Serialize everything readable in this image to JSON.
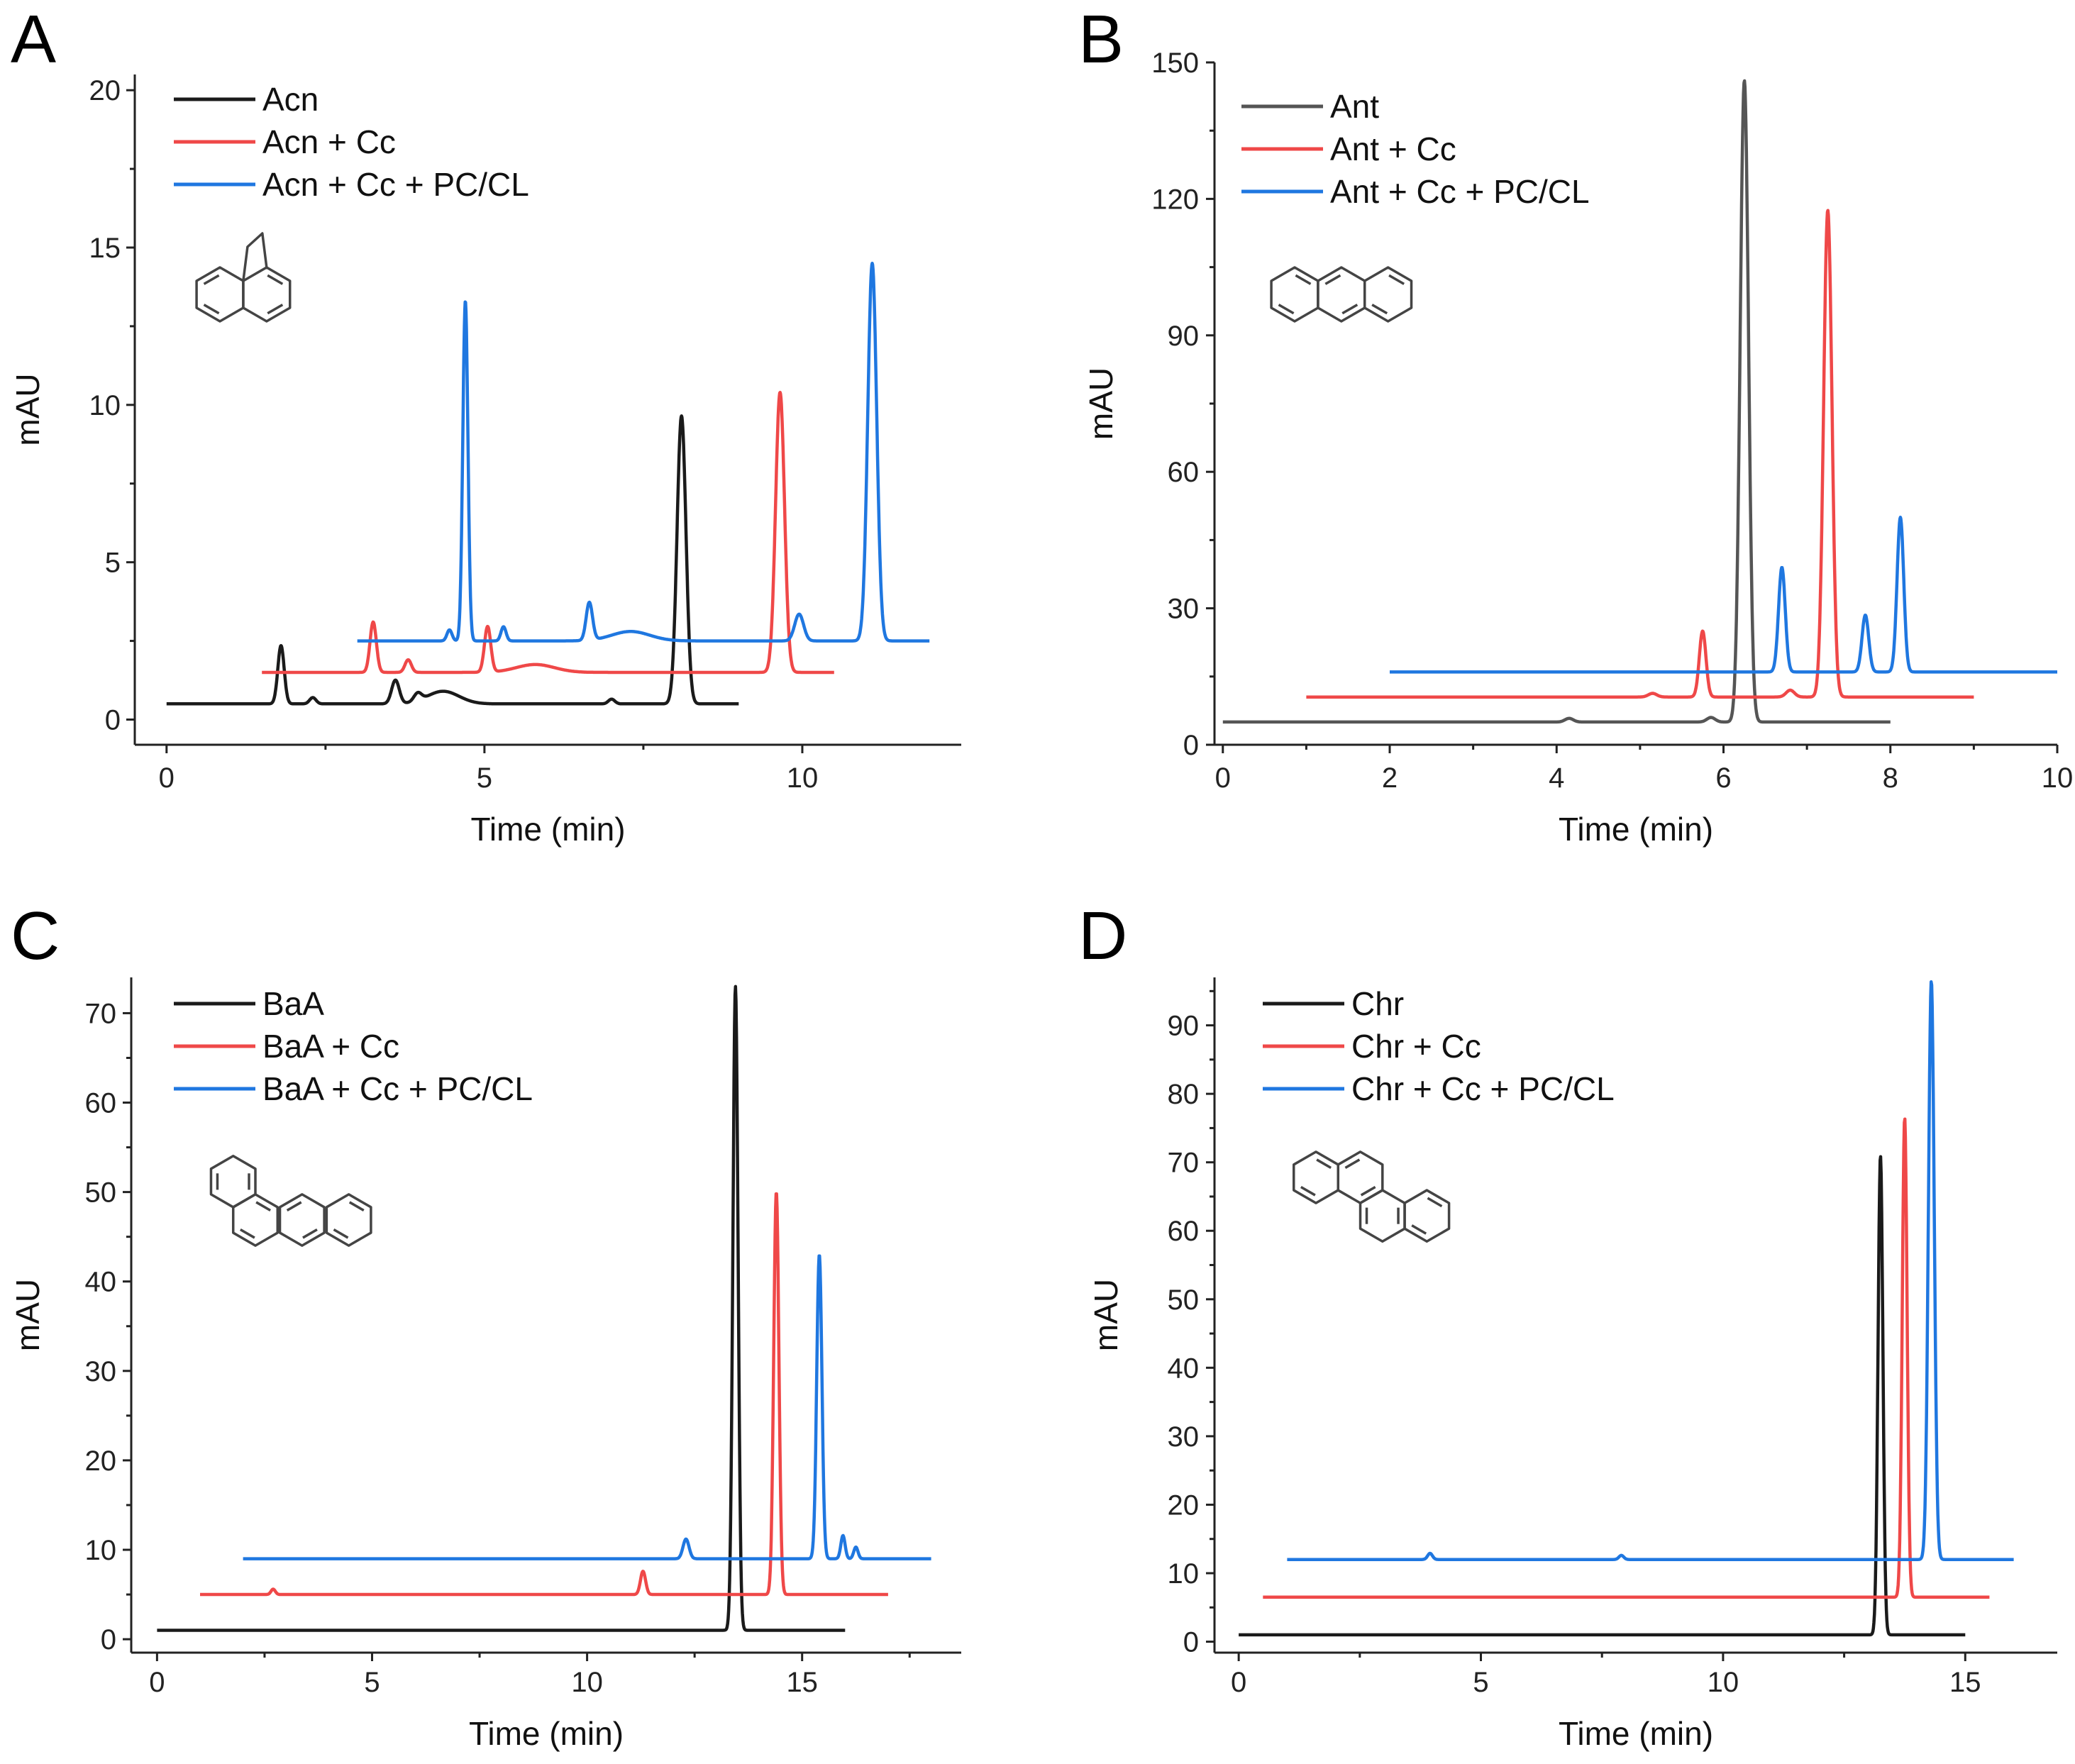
{
  "colors": {
    "black": "#1a1a1a",
    "red": "#ef4848",
    "blue": "#1f77e0",
    "gray": "#555555"
  },
  "chart_data": [
    {
      "type": "line",
      "panel": "A",
      "xlabel": "Time (min)",
      "ylabel": "mAU",
      "xlim": [
        -0.5,
        12.5
      ],
      "ylim": [
        -0.8,
        20.5
      ],
      "xticks": [
        0,
        5,
        10
      ],
      "yticks": [
        0,
        5,
        10,
        15,
        20
      ],
      "molecule": "acenaphthene",
      "series": [
        {
          "name": "Acn",
          "color": "black",
          "x_range": [
            0,
            9
          ],
          "baseline": 0.5,
          "peaks": [
            [
              1.8,
              1.85,
              0.05
            ],
            [
              2.3,
              0.2,
              0.05
            ],
            [
              3.6,
              0.75,
              0.06
            ],
            [
              3.95,
              0.25,
              0.06
            ],
            [
              4.35,
              0.4,
              0.25
            ],
            [
              7.0,
              0.15,
              0.05
            ],
            [
              8.1,
              9.15,
              0.07
            ]
          ]
        },
        {
          "name": "Acn + Cc",
          "color": "red",
          "x_range": [
            1.5,
            10.5
          ],
          "baseline": 1.5,
          "peaks": [
            [
              3.25,
              1.6,
              0.05
            ],
            [
              3.8,
              0.4,
              0.05
            ],
            [
              5.05,
              1.45,
              0.05
            ],
            [
              5.8,
              0.25,
              0.3
            ],
            [
              9.65,
              8.9,
              0.07
            ]
          ]
        },
        {
          "name": "Acn + Cc + PC/CL",
          "color": "blue",
          "x_range": [
            3,
            12
          ],
          "baseline": 2.5,
          "peaks": [
            [
              4.45,
              0.35,
              0.04
            ],
            [
              4.7,
              10.8,
              0.04
            ],
            [
              5.3,
              0.45,
              0.04
            ],
            [
              6.65,
              1.2,
              0.05
            ],
            [
              7.3,
              0.3,
              0.3
            ],
            [
              9.95,
              0.85,
              0.07
            ],
            [
              11.1,
              12.0,
              0.07
            ]
          ]
        }
      ]
    },
    {
      "type": "line",
      "panel": "B",
      "xlabel": "Time (min)",
      "ylabel": "mAU",
      "xlim": [
        -0.1,
        10.0
      ],
      "ylim": [
        0,
        150
      ],
      "xticks": [
        0,
        2,
        4,
        6,
        8,
        10
      ],
      "yticks": [
        0,
        30,
        60,
        90,
        120,
        150
      ],
      "molecule": "anthracene",
      "series": [
        {
          "name": "Ant",
          "color": "gray",
          "x_range": [
            0,
            8
          ],
          "baseline": 5,
          "peaks": [
            [
              4.15,
              0.8,
              0.05
            ],
            [
              5.85,
              1.0,
              0.05
            ],
            [
              6.25,
              141,
              0.05
            ]
          ]
        },
        {
          "name": "Ant + Cc",
          "color": "red",
          "x_range": [
            1,
            9
          ],
          "baseline": 10.5,
          "peaks": [
            [
              5.15,
              0.8,
              0.05
            ],
            [
              5.75,
              14.5,
              0.04
            ],
            [
              6.8,
              1.5,
              0.05
            ],
            [
              7.25,
              107,
              0.05
            ]
          ]
        },
        {
          "name": "Ant + Cc + PC/CL",
          "color": "blue",
          "x_range": [
            2,
            10
          ],
          "baseline": 16,
          "peaks": [
            [
              6.7,
              23,
              0.04
            ],
            [
              7.7,
              12.5,
              0.04
            ],
            [
              8.12,
              34,
              0.04
            ]
          ]
        }
      ]
    },
    {
      "type": "line",
      "panel": "C",
      "xlabel": "Time (min)",
      "ylabel": "mAU",
      "xlim": [
        -0.6,
        18.7
      ],
      "ylim": [
        -1.5,
        74
      ],
      "xticks": [
        0,
        5,
        10,
        15
      ],
      "yticks": [
        0,
        10,
        20,
        30,
        40,
        50,
        60,
        70
      ],
      "molecule": "benz[a]anthracene",
      "series": [
        {
          "name": "BaA",
          "color": "black",
          "x_range": [
            0,
            16
          ],
          "baseline": 1,
          "peaks": [
            [
              13.45,
              72,
              0.06
            ]
          ]
        },
        {
          "name": "BaA + Cc",
          "color": "red",
          "x_range": [
            1,
            17
          ],
          "baseline": 5,
          "peaks": [
            [
              2.7,
              0.6,
              0.05
            ],
            [
              11.3,
              2.6,
              0.06
            ],
            [
              14.4,
              45,
              0.06
            ]
          ]
        },
        {
          "name": "BaA + Cc + PC/CL",
          "color": "blue",
          "x_range": [
            2,
            18
          ],
          "baseline": 9,
          "peaks": [
            [
              12.3,
              2.2,
              0.07
            ],
            [
              15.4,
              34,
              0.06
            ],
            [
              15.95,
              2.6,
              0.05
            ],
            [
              16.25,
              1.3,
              0.05
            ]
          ]
        }
      ]
    },
    {
      "type": "line",
      "panel": "D",
      "xlabel": "Time (min)",
      "ylabel": "mAU",
      "xlim": [
        -0.5,
        16.9
      ],
      "ylim": [
        -1.6,
        97
      ],
      "xticks": [
        0,
        5,
        10,
        15
      ],
      "yticks": [
        0,
        10,
        20,
        30,
        40,
        50,
        60,
        70,
        80,
        90
      ],
      "molecule": "chrysene",
      "series": [
        {
          "name": "Chr",
          "color": "black",
          "x_range": [
            0,
            15
          ],
          "baseline": 1,
          "peaks": [
            [
              13.25,
              70,
              0.05
            ]
          ]
        },
        {
          "name": "Chr + Cc",
          "color": "red",
          "x_range": [
            0.5,
            15.5
          ],
          "baseline": 6.5,
          "peaks": [
            [
              13.75,
              70,
              0.05
            ]
          ]
        },
        {
          "name": "Chr + Cc + PC/CL",
          "color": "blue",
          "x_range": [
            1,
            16
          ],
          "baseline": 12,
          "peaks": [
            [
              3.95,
              0.9,
              0.05
            ],
            [
              7.9,
              0.6,
              0.05
            ],
            [
              14.3,
              84.5,
              0.06
            ]
          ]
        }
      ]
    }
  ]
}
